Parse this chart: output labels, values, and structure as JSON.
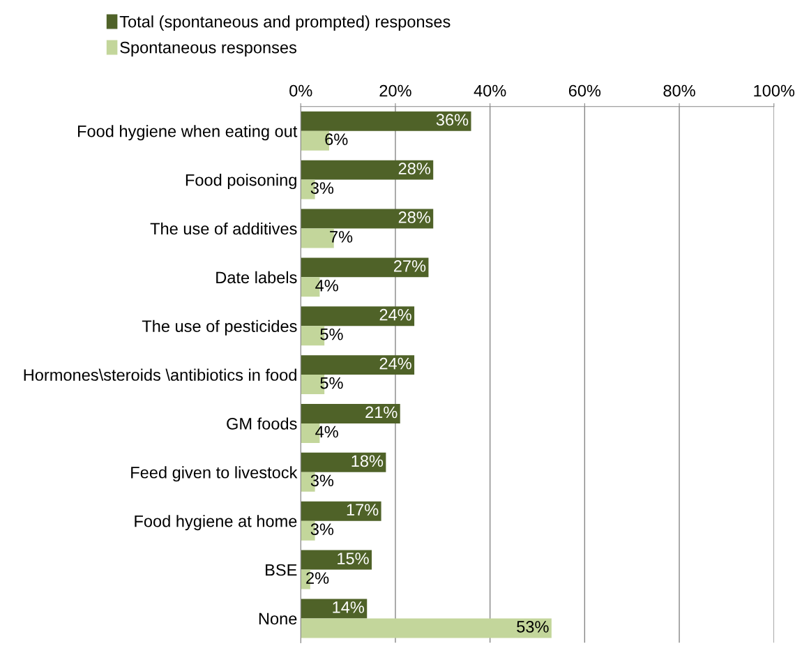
{
  "chart_data": {
    "type": "bar",
    "orientation": "horizontal",
    "categories": [
      "Food hygiene when eating out",
      "Food poisoning",
      "The use of additives",
      "Date labels",
      "The use of pesticides",
      "Hormones\\steroids \\antibiotics in food",
      "GM foods",
      "Feed given to livestock",
      "Food hygiene at home",
      "BSE",
      "None"
    ],
    "series": [
      {
        "name": "Total (spontaneous and prompted) responses",
        "color": "#4f6228",
        "values": [
          36,
          28,
          28,
          27,
          24,
          24,
          21,
          18,
          17,
          15,
          14
        ],
        "value_labels": [
          "36%",
          "28%",
          "28%",
          "27%",
          "24%",
          "24%",
          "21%",
          "18%",
          "17%",
          "15%",
          "14%"
        ]
      },
      {
        "name": "Spontaneous responses",
        "color": "#c3d69b",
        "values": [
          6,
          3,
          7,
          4,
          5,
          5,
          4,
          3,
          3,
          2,
          53
        ],
        "value_labels": [
          "6%",
          "3%",
          "7%",
          "4%",
          "5%",
          "5%",
          "4%",
          "3%",
          "3%",
          "2%",
          "53%"
        ]
      }
    ],
    "xlim": [
      0,
      100
    ],
    "xticks": [
      {
        "value": 0,
        "label": "0%"
      },
      {
        "value": 20,
        "label": "20%"
      },
      {
        "value": 40,
        "label": "40%"
      },
      {
        "value": 60,
        "label": "60%"
      },
      {
        "value": 80,
        "label": "80%"
      },
      {
        "value": 100,
        "label": "100%"
      }
    ],
    "grid": "x",
    "legend": "top"
  }
}
